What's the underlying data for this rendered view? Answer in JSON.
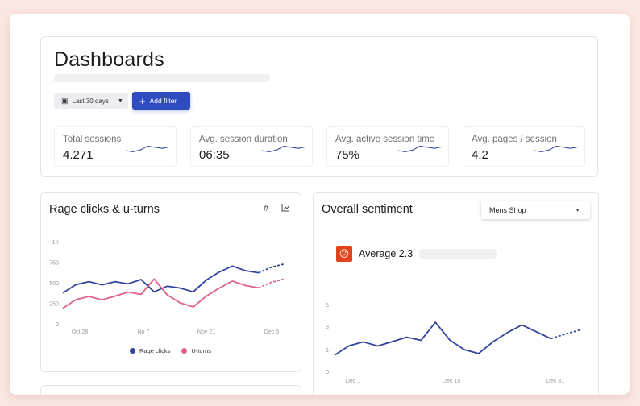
{
  "header": {
    "title": "Dashboards",
    "date_filter": "Last 30 days",
    "date_icon": "calendar-icon",
    "add_filter": "Add filter"
  },
  "stats": [
    {
      "label": "Total sessions",
      "value": "4.271",
      "spark": [
        2,
        1.6,
        2.2,
        3.6,
        3.2,
        2.8,
        3.3
      ]
    },
    {
      "label": "Avg. session duration",
      "value": "06:35",
      "spark": [
        2,
        1.6,
        2.2,
        3.6,
        3.2,
        2.8,
        3.3
      ]
    },
    {
      "label": "Avg. active session time",
      "value": "75%",
      "spark": [
        2,
        1.6,
        2.2,
        3.6,
        3.2,
        2.8,
        3.3
      ]
    },
    {
      "label": "Avg. pages / session",
      "value": "4.2",
      "spark": [
        2,
        1.6,
        2.2,
        3.6,
        3.2,
        2.8,
        3.3
      ]
    }
  ],
  "rage": {
    "title": "Rage clicks & u-turns",
    "icons": [
      "hash-icon",
      "line-chart-icon"
    ]
  },
  "sentiment": {
    "title": "Overall sentiment",
    "dropdown": "Mens Shop",
    "average": "Average 2.3",
    "face_icon": "sad-face-icon",
    "face_color": "#e2431c"
  },
  "chart_data": [
    {
      "type": "line",
      "title": "Rage clicks & u-turns",
      "yticks": [
        "0",
        "250",
        "500",
        "750",
        "1K"
      ],
      "ylim": [
        0,
        1000
      ],
      "xticks": [
        "Oct 28",
        "No 7",
        "Nov 21",
        "Dec 5"
      ],
      "grid": false,
      "legend": "bottom",
      "forecast": "last 2 points dashed",
      "series": [
        {
          "name": "Rage clicks",
          "color": "#33449e",
          "values": [
            376,
            477,
            513,
            474,
            513,
            487,
            539,
            389,
            458,
            435,
            389,
            533,
            631,
            703,
            647,
            621,
            690,
            729
          ]
        },
        {
          "name": "U-turns",
          "color": "#e0628a",
          "values": [
            190,
            294,
            333,
            291,
            337,
            386,
            359,
            546,
            353,
            255,
            206,
            337,
            435,
            520,
            467,
            438,
            506,
            546
          ]
        }
      ]
    },
    {
      "type": "line",
      "yticks": [
        "0",
        "1",
        "3",
        "5"
      ],
      "xticks": [
        "Dec 1",
        "Dec 15",
        "Dec 31"
      ],
      "grid": false,
      "forecast": "last 2 points dashed",
      "series": [
        {
          "color": "#33449e",
          "values": [
            0.74,
            1.33,
            1.66,
            1.31,
            1.68,
            2.06,
            1.8,
            3.37,
            1.82,
            1.0,
            0.82,
            1.68,
            2.46,
            3.12,
            2.53,
            1.94,
            2.32,
            2.67
          ]
        }
      ]
    }
  ]
}
